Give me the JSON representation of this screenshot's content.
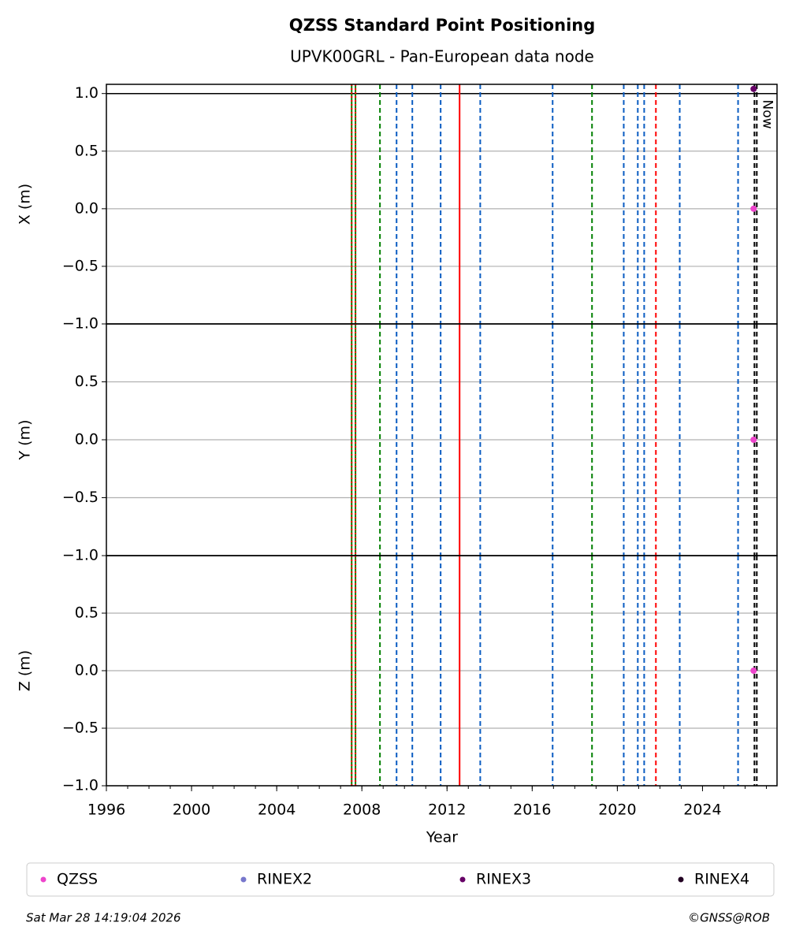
{
  "chart_data": [
    {
      "type": "scatter",
      "title": "QZSS Standard Point Positioning",
      "subtitle": "UPVK00GRL - Pan-European data node",
      "ylabel": "X (m)",
      "xlim": [
        1996,
        2027.5
      ],
      "ylim": [
        -1,
        1.08
      ],
      "yticks": [
        {
          "value": -1,
          "label": "−1.0"
        },
        {
          "value": -0.5,
          "label": "−0.5"
        },
        {
          "value": 0,
          "label": "0.0"
        },
        0.5,
        {
          "value": 1,
          "label": "1.0"
        }
      ],
      "grid": true,
      "hlines": [
        1
      ],
      "series": [
        {
          "name": "QZSS",
          "color": "#ee44cc",
          "x": [
            2026.4
          ],
          "values": [
            0
          ]
        },
        {
          "name": "RINEX2",
          "color": "#7777cc",
          "x": [],
          "values": []
        },
        {
          "name": "RINEX3",
          "color": "#660066",
          "x": [
            2026.4
          ],
          "values": [
            1.04
          ]
        },
        {
          "name": "RINEX4",
          "color": "#220022",
          "x": [],
          "values": []
        }
      ],
      "annotations": [
        {
          "text": "Now",
          "x": 2026.44
        }
      ]
    },
    {
      "type": "scatter",
      "ylabel": "Y (m)",
      "xlim": [
        1996,
        2027.5
      ],
      "ylim": [
        -1,
        1
      ],
      "yticks": [
        {
          "value": -1,
          "label": "−1.0"
        },
        {
          "value": -0.5,
          "label": "−0.5"
        },
        {
          "value": 0,
          "label": "0.0"
        },
        0.5
      ],
      "grid": true,
      "series": [
        {
          "name": "QZSS",
          "color": "#ee44cc",
          "x": [
            2026.4
          ],
          "values": [
            0
          ]
        }
      ]
    },
    {
      "type": "scatter",
      "ylabel": "Z (m)",
      "xlabel": "Year",
      "xlim": [
        1996,
        2027.5
      ],
      "ylim": [
        -1,
        1
      ],
      "yticks": [
        {
          "value": -1,
          "label": "−1.0"
        },
        {
          "value": -0.5,
          "label": "−0.5"
        },
        {
          "value": 0,
          "label": "0.0"
        },
        0.5
      ],
      "xticks": [
        1996,
        2000,
        2004,
        2008,
        2012,
        2016,
        2020,
        2024
      ],
      "grid": true,
      "series": [
        {
          "name": "QZSS",
          "color": "#ee44cc",
          "x": [
            2026.4
          ],
          "values": [
            0
          ]
        }
      ]
    }
  ],
  "events": [
    {
      "x": 2007.52,
      "color": "#008000",
      "style": "solid"
    },
    {
      "x": 2007.52,
      "color": "#ff0000",
      "style": "dotted"
    },
    {
      "x": 2007.7,
      "color": "#008000",
      "style": "solid"
    },
    {
      "x": 2007.7,
      "color": "#ff0000",
      "style": "dotted"
    },
    {
      "x": 2008.85,
      "color": "#008000",
      "style": "dashed"
    },
    {
      "x": 2009.63,
      "color": "#0a5cc2",
      "style": "dashed"
    },
    {
      "x": 2010.37,
      "color": "#0a5cc2",
      "style": "dashed"
    },
    {
      "x": 2011.7,
      "color": "#0a5cc2",
      "style": "dashed"
    },
    {
      "x": 2012.59,
      "color": "#ff0000",
      "style": "solid"
    },
    {
      "x": 2013.56,
      "color": "#0a5cc2",
      "style": "dashed"
    },
    {
      "x": 2016.96,
      "color": "#0a5cc2",
      "style": "dashed"
    },
    {
      "x": 2018.81,
      "color": "#008000",
      "style": "dashed"
    },
    {
      "x": 2020.3,
      "color": "#0a5cc2",
      "style": "dashed"
    },
    {
      "x": 2020.96,
      "color": "#0a5cc2",
      "style": "dashed"
    },
    {
      "x": 2021.26,
      "color": "#0a5cc2",
      "style": "dashed"
    },
    {
      "x": 2021.81,
      "color": "#ff0000",
      "style": "dashed"
    },
    {
      "x": 2022.93,
      "color": "#0a5cc2",
      "style": "dashed"
    },
    {
      "x": 2025.67,
      "color": "#0a5cc2",
      "style": "dashed"
    },
    {
      "x": 2026.44,
      "color": "#000000",
      "style": "dashed"
    },
    {
      "x": 2026.55,
      "color": "#000000",
      "style": "dashed"
    }
  ],
  "footer": {
    "date": "Sat Mar 28 14:19:04 2026",
    "credit": "©GNSS@ROB"
  }
}
